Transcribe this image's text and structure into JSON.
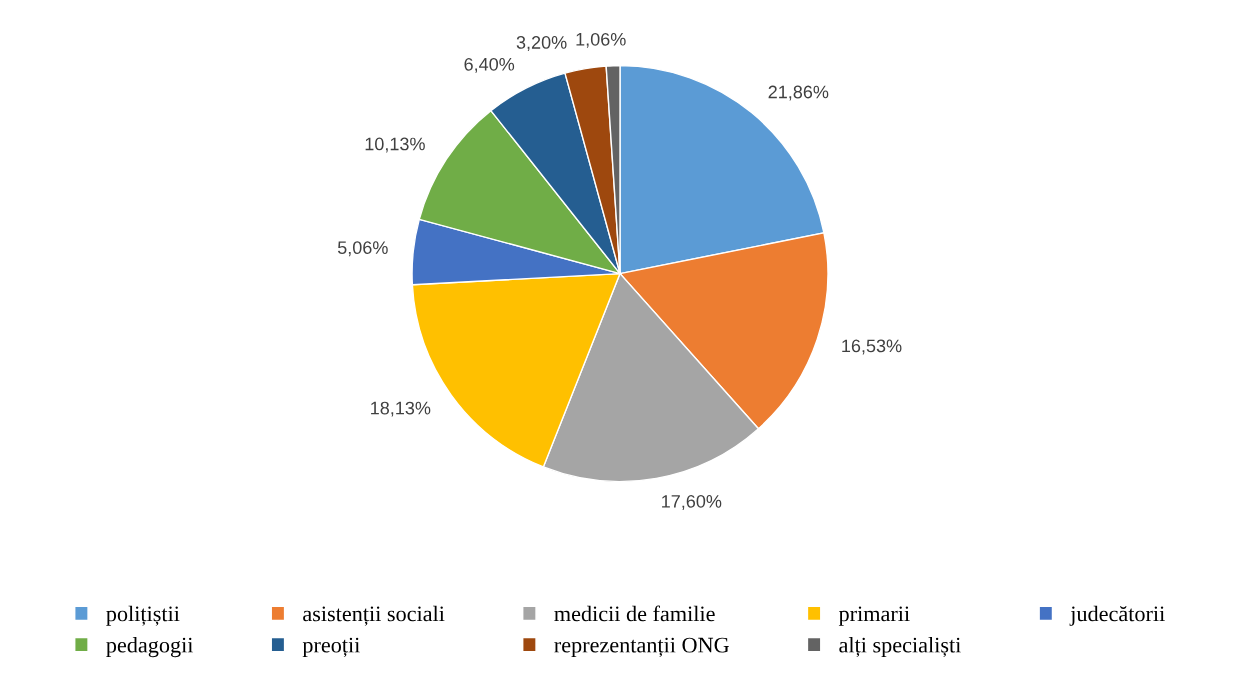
{
  "chart_data": {
    "type": "pie",
    "categories": [
      "polițiștii",
      "asistenții sociali",
      "medicii de familie",
      "primarii",
      "judecătorii",
      "pedagogii",
      "preoții",
      "reprezentanții ONG",
      "alți specialiști"
    ],
    "values": [
      21.86,
      16.53,
      17.6,
      18.13,
      5.06,
      10.13,
      6.4,
      3.2,
      1.06
    ],
    "value_labels": [
      "21,86%",
      "16,53%",
      "17,60%",
      "18,13%",
      "5,06%",
      "10,13%",
      "6,40%",
      "3,20%",
      "1,06%"
    ],
    "colors": [
      "#5b9bd5",
      "#ed7d31",
      "#a5a5a5",
      "#ffc000",
      "#4472c4",
      "#70ad47",
      "#255e91",
      "#9e480e",
      "#636363"
    ],
    "legend": "bottom"
  }
}
